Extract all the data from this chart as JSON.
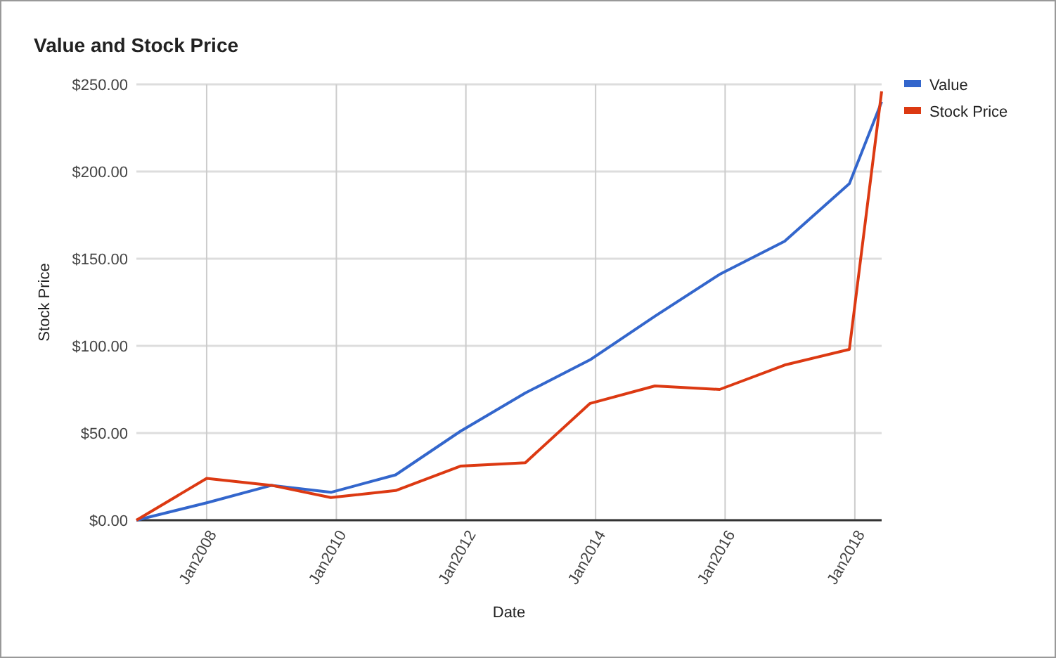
{
  "chart_data": {
    "type": "line",
    "title": "Value and Stock Price",
    "xlabel": "Date",
    "ylabel": "Stock Price",
    "x": [
      "2006-12",
      "2008-01",
      "2009-01",
      "2009-12",
      "2010-12",
      "2011-12",
      "2012-12",
      "2013-12",
      "2014-12",
      "2015-12",
      "2016-12",
      "2017-12",
      "2018-06"
    ],
    "series": [
      {
        "name": "Value",
        "color": "#3366cc",
        "values": [
          0,
          10,
          20,
          16,
          26,
          51,
          73,
          92,
          117,
          141,
          160,
          193,
          240
        ]
      },
      {
        "name": "Stock Price",
        "color": "#dc3912",
        "values": [
          0,
          24,
          20,
          13,
          17,
          31,
          33,
          67,
          77,
          75,
          89,
          98,
          246
        ]
      }
    ],
    "xlim": [
      "2006-12",
      "2018-06"
    ],
    "xticks": [
      {
        "value": "2008-01",
        "label": "Jan2008"
      },
      {
        "value": "2010-01",
        "label": "Jan2010"
      },
      {
        "value": "2012-01",
        "label": "Jan2012"
      },
      {
        "value": "2014-01",
        "label": "Jan2014"
      },
      {
        "value": "2016-01",
        "label": "Jan2016"
      },
      {
        "value": "2018-01",
        "label": "Jan2018"
      }
    ],
    "ylim": [
      0,
      250
    ],
    "yticks": [
      {
        "value": 0,
        "label": "$0.00"
      },
      {
        "value": 50,
        "label": "$50.00"
      },
      {
        "value": 100,
        "label": "$100.00"
      },
      {
        "value": 150,
        "label": "$150.00"
      },
      {
        "value": 200,
        "label": "$200.00"
      },
      {
        "value": 250,
        "label": "$250.00"
      }
    ],
    "grid": true,
    "legend": "top right",
    "marker": "none",
    "line_style": "solid"
  }
}
